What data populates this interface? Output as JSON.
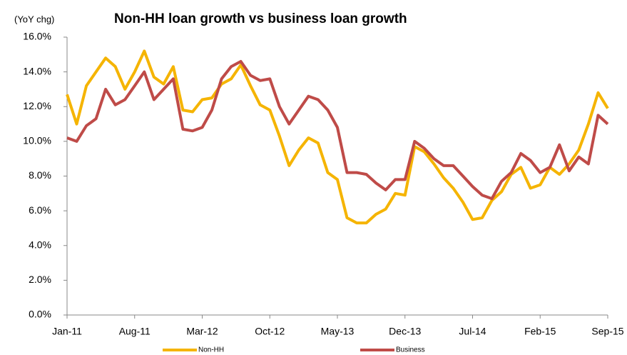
{
  "chart_data": {
    "type": "line",
    "unit_note": "(YoY chg)",
    "title": "Non-HH loan growth vs business loan growth",
    "categories": [
      "Jan-11",
      null,
      null,
      null,
      null,
      null,
      null,
      "Aug-11",
      null,
      null,
      null,
      null,
      null,
      null,
      "Mar-12",
      null,
      null,
      null,
      null,
      null,
      null,
      "Oct-12",
      null,
      null,
      null,
      null,
      null,
      null,
      "May-13",
      null,
      null,
      null,
      null,
      null,
      null,
      "Dec-13",
      null,
      null,
      null,
      null,
      null,
      null,
      "Jul-14",
      null,
      null,
      null,
      null,
      null,
      null,
      "Feb-15",
      null,
      null,
      null,
      null,
      null,
      null,
      "Sep-15"
    ],
    "series": [
      {
        "name": "Non-HH",
        "color": "#f5b400",
        "values": [
          12.7,
          11.0,
          13.2,
          14.0,
          14.8,
          14.3,
          13.0,
          14.0,
          15.2,
          13.7,
          13.3,
          14.3,
          11.8,
          11.7,
          12.4,
          12.5,
          13.3,
          13.6,
          14.4,
          13.2,
          12.1,
          11.8,
          10.3,
          8.6,
          9.5,
          10.2,
          9.9,
          8.2,
          7.8,
          5.6,
          5.3,
          5.3,
          5.8,
          6.1,
          7.0,
          6.9,
          9.7,
          9.4,
          8.7,
          7.9,
          7.3,
          6.5,
          5.5,
          5.6,
          6.6,
          7.1,
          8.1,
          8.5,
          7.3,
          7.5,
          8.5,
          8.1,
          8.7,
          9.5,
          11.0,
          12.8,
          11.9
        ]
      },
      {
        "name": "Business",
        "color": "#bf4b48",
        "values": [
          10.2,
          10.0,
          10.9,
          11.3,
          13.0,
          12.1,
          12.4,
          13.2,
          14.0,
          12.4,
          13.0,
          13.6,
          10.7,
          10.6,
          10.8,
          11.8,
          13.6,
          14.3,
          14.6,
          13.8,
          13.5,
          13.6,
          12.0,
          11.0,
          11.8,
          12.6,
          12.4,
          11.8,
          10.8,
          8.2,
          8.2,
          8.1,
          7.6,
          7.2,
          7.8,
          7.8,
          10.0,
          9.6,
          9.0,
          8.6,
          8.6,
          8.0,
          7.4,
          6.9,
          6.7,
          7.7,
          8.2,
          9.3,
          8.9,
          8.2,
          8.5,
          9.8,
          8.3,
          9.1,
          8.7,
          11.5,
          11.0
        ]
      }
    ],
    "ylim": [
      0,
      16
    ],
    "yticks": [
      {
        "value": 0,
        "label": "0.0%"
      },
      {
        "value": 2,
        "label": "2.0%"
      },
      {
        "value": 4,
        "label": "4.0%"
      },
      {
        "value": 6,
        "label": "6.0%"
      },
      {
        "value": 8,
        "label": "8.0%"
      },
      {
        "value": 10,
        "label": "10.0%"
      },
      {
        "value": 12,
        "label": "12.0%"
      },
      {
        "value": 14,
        "label": "14.0%"
      },
      {
        "value": 16,
        "label": "16.0%"
      }
    ],
    "grid": false,
    "legend": "bottom"
  }
}
